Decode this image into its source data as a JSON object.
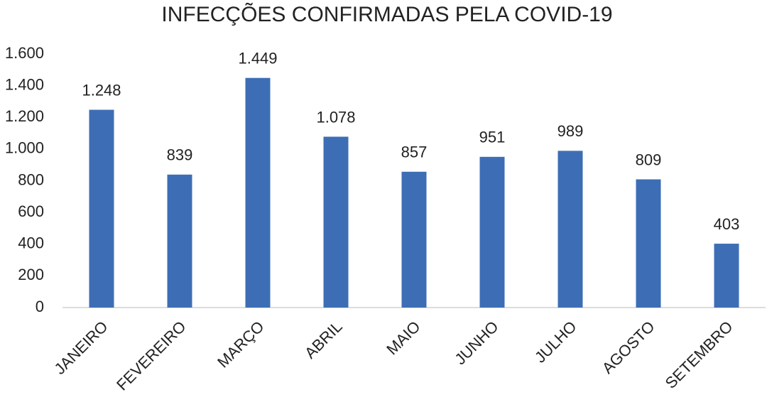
{
  "chart_data": {
    "type": "bar",
    "title": "INFECÇÕES CONFIRMADAS PELA COVID-19",
    "categories": [
      "JANEIRO",
      "FEVEREIRO",
      "MARÇO",
      "ABRIL",
      "MAIO",
      "JUNHO",
      "JULHO",
      "AGOSTO",
      "SETEMBRO"
    ],
    "values": [
      1248,
      839,
      1449,
      1078,
      857,
      951,
      989,
      809,
      403
    ],
    "value_labels": [
      "1.248",
      "839",
      "1.449",
      "1.078",
      "857",
      "951",
      "989",
      "809",
      "403"
    ],
    "color": "#3d6eb5",
    "ylim": [
      0,
      1600
    ],
    "yticks": [
      0,
      200,
      400,
      600,
      800,
      {
        "value": 1000,
        "label": "1.000"
      },
      {
        "value": 1200,
        "label": "1.200"
      },
      {
        "value": 1400,
        "label": "1.400"
      },
      {
        "value": 1600,
        "label": "1.600"
      }
    ],
    "grid": false
  }
}
